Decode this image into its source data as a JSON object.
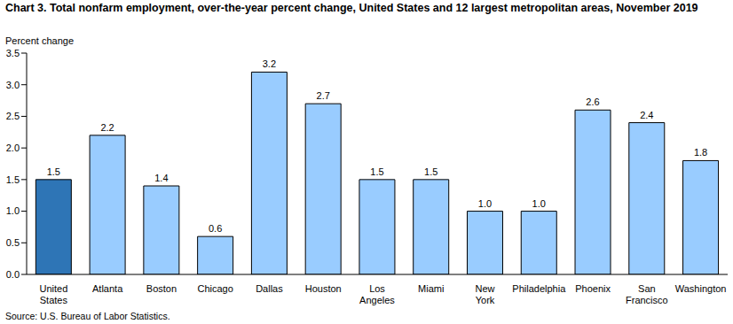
{
  "chart_data": {
    "type": "bar",
    "title": "Chart 3. Total nonfarm employment, over-the-year percent change, United States and 12 largest metropolitan areas, November 2019",
    "y_label": "Percent change",
    "source": "Source: U.S. Bureau of Labor Statistics.",
    "categories": [
      "United States",
      "Atlanta",
      "Boston",
      "Chicago",
      "Dallas",
      "Houston",
      "Los Angeles",
      "Miami",
      "New York",
      "Philadelphia",
      "Phoenix",
      "San Francisco",
      "Washington"
    ],
    "values": [
      1.5,
      2.2,
      1.4,
      0.6,
      3.2,
      2.7,
      1.5,
      1.5,
      1.0,
      1.0,
      2.6,
      2.4,
      1.8
    ],
    "value_labels": [
      "1.5",
      "2.2",
      "1.4",
      "0.6",
      "3.2",
      "2.7",
      "1.5",
      "1.5",
      "1.0",
      "1.0",
      "2.6",
      "2.4",
      "1.8"
    ],
    "colors": [
      "#2e75b6",
      "#99ccff",
      "#99ccff",
      "#99ccff",
      "#99ccff",
      "#99ccff",
      "#99ccff",
      "#99ccff",
      "#99ccff",
      "#99ccff",
      "#99ccff",
      "#99ccff",
      "#99ccff"
    ],
    "ylim": [
      0,
      3.5
    ],
    "yticks": [
      {
        "value": 0,
        "label": "0.0"
      },
      {
        "value": 0.5,
        "label": "0.5"
      },
      {
        "value": 1,
        "label": "1.0"
      },
      {
        "value": 1.5,
        "label": "1.5"
      },
      {
        "value": 2,
        "label": "2.0"
      },
      {
        "value": 2.5,
        "label": "2.5"
      },
      {
        "value": 3,
        "label": "3.0"
      },
      {
        "value": 3.5,
        "label": "3.5"
      }
    ],
    "grid": false,
    "data_labels": true
  }
}
